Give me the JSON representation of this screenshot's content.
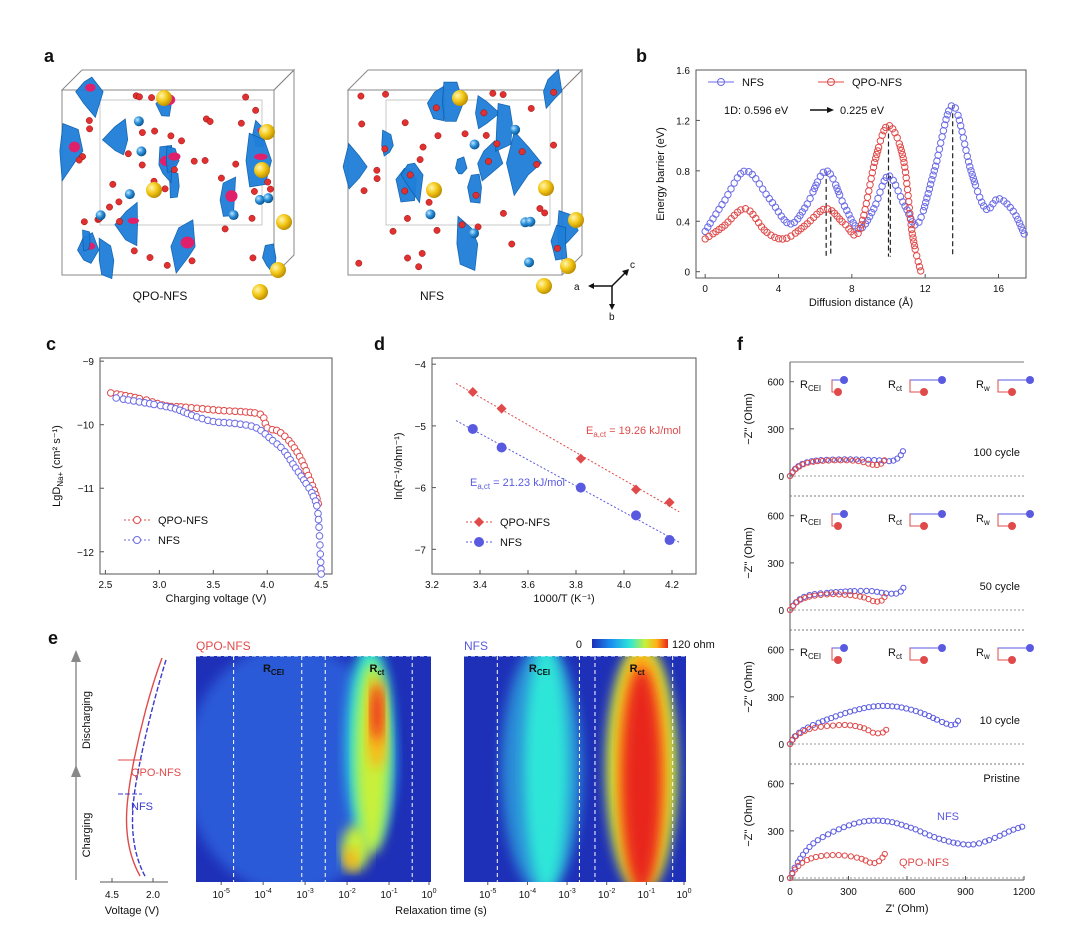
{
  "panel_labels": [
    "a",
    "b",
    "c",
    "d",
    "e",
    "f"
  ],
  "panel_a": {
    "structures": [
      {
        "label": "QPO-NFS",
        "highlight": "#e0206a"
      },
      {
        "label": "NFS",
        "highlight": ""
      }
    ],
    "axes": {
      "a": "a",
      "b": "b",
      "c": "c"
    },
    "colors": {
      "surface": "#1f7fd9",
      "oxygen": "#e03030",
      "sodium_yellow": "#f4c818",
      "sodium_blue": "#2a8fd8"
    }
  },
  "chart_data": [
    {
      "id": "b",
      "type": "line",
      "xlabel": "Diffusion distance (Å)",
      "ylabel": "Energy barrier (eV)",
      "xlim": [
        -0.5,
        17.5
      ],
      "ylim": [
        -0.05,
        1.6
      ],
      "xticks": [
        0,
        4,
        8,
        12,
        16
      ],
      "yticks": [
        0,
        0.4,
        0.8,
        1.2,
        1.6
      ],
      "annotation": {
        "prefix": "1D:",
        "from": "0.596 eV",
        "to": "0.225 eV"
      },
      "legend": "top",
      "series": [
        {
          "name": "NFS",
          "color": "#6b6be6",
          "points": [
            [
              0,
              0.32
            ],
            [
              1,
              0.55
            ],
            [
              2.2,
              0.8
            ],
            [
              3.5,
              0.58
            ],
            [
              4.6,
              0.38
            ],
            [
              5.5,
              0.52
            ],
            [
              6.6,
              0.8
            ],
            [
              7.6,
              0.52
            ],
            [
              8.4,
              0.34
            ],
            [
              9.2,
              0.5
            ],
            [
              10.0,
              0.76
            ],
            [
              10.9,
              0.52
            ],
            [
              11.6,
              0.38
            ],
            [
              12.5,
              0.8
            ],
            [
              13.5,
              1.32
            ],
            [
              14.5,
              0.8
            ],
            [
              15.3,
              0.5
            ],
            [
              16.0,
              0.58
            ],
            [
              16.8,
              0.48
            ],
            [
              17.4,
              0.3
            ]
          ]
        },
        {
          "name": "QPO-NFS",
          "color": "#e04a4a",
          "points": [
            [
              0,
              0.26
            ],
            [
              1,
              0.36
            ],
            [
              2.2,
              0.5
            ],
            [
              3.3,
              0.32
            ],
            [
              4.3,
              0.26
            ],
            [
              5.4,
              0.36
            ],
            [
              6.6,
              0.5
            ],
            [
              7.6,
              0.38
            ],
            [
              8.4,
              0.32
            ],
            [
              9.3,
              0.9
            ],
            [
              10.0,
              1.16
            ],
            [
              10.8,
              0.9
            ],
            [
              11.3,
              0.3
            ],
            [
              11.8,
              -0.02
            ]
          ]
        }
      ],
      "dashed_markers": [
        {
          "x": 6.6,
          "ytop": 0.8
        },
        {
          "x": 6.85,
          "ytop": 0.5
        },
        {
          "x": 10.0,
          "ytop": 1.16
        },
        {
          "x": 10.1,
          "ytop": 0.76
        },
        {
          "x": 13.5,
          "ytop": 1.32
        }
      ]
    },
    {
      "id": "c",
      "type": "line",
      "xlabel": "Charging voltage (V)",
      "ylabel": "LgD",
      "ylabel_sub": "Na+",
      "ylabel_unit": " (cm² s⁻¹)",
      "xlim": [
        2.45,
        4.6
      ],
      "ylim": [
        -12.35,
        -8.95
      ],
      "xticks": [
        2.5,
        3.0,
        3.5,
        4.0,
        4.5
      ],
      "yticks": [
        -9,
        -10,
        -11,
        -12
      ],
      "legend": "bottom-left",
      "series": [
        {
          "name": "QPO-NFS",
          "color": "#e04a4a",
          "points": [
            [
              2.55,
              -9.5
            ],
            [
              2.85,
              -9.6
            ],
            [
              3.05,
              -9.7
            ],
            [
              3.2,
              -9.72
            ],
            [
              3.4,
              -9.75
            ],
            [
              3.6,
              -9.78
            ],
            [
              3.8,
              -9.8
            ],
            [
              3.95,
              -9.85
            ],
            [
              4.0,
              -10.05
            ],
            [
              4.1,
              -10.1
            ],
            [
              4.2,
              -10.25
            ],
            [
              4.3,
              -10.5
            ],
            [
              4.38,
              -10.8
            ],
            [
              4.45,
              -11.1
            ],
            [
              4.48,
              -11.3
            ]
          ]
        },
        {
          "name": "NFS",
          "color": "#6b6be6",
          "points": [
            [
              2.6,
              -9.58
            ],
            [
              2.95,
              -9.68
            ],
            [
              3.15,
              -9.75
            ],
            [
              3.3,
              -9.85
            ],
            [
              3.5,
              -9.95
            ],
            [
              3.7,
              -9.98
            ],
            [
              3.9,
              -10.05
            ],
            [
              4.05,
              -10.25
            ],
            [
              4.15,
              -10.4
            ],
            [
              4.25,
              -10.65
            ],
            [
              4.35,
              -10.9
            ],
            [
              4.42,
              -11.1
            ],
            [
              4.47,
              -11.4
            ],
            [
              4.5,
              -12.35
            ]
          ]
        }
      ]
    },
    {
      "id": "d",
      "type": "scatter",
      "xlabel": "1000/T (K⁻¹)",
      "ylabel": "ln(R⁻¹/ohm⁻¹)",
      "xlim": [
        3.2,
        4.3
      ],
      "ylim": [
        -7.4,
        -3.9
      ],
      "xticks": [
        3.2,
        3.4,
        3.6,
        3.8,
        4.0,
        4.2
      ],
      "yticks": [
        -4,
        -5,
        -6,
        -7
      ],
      "legend": "bottom-left",
      "series": [
        {
          "name": "QPO-NFS",
          "color": "#e04a4a",
          "marker": "diamond",
          "x": [
            3.37,
            3.49,
            3.82,
            4.05,
            4.19
          ],
          "y": [
            -4.45,
            -4.72,
            -5.53,
            -6.03,
            -6.24
          ],
          "label": "E",
          "label_sub": "a,ct",
          "label_value": " = 19.26 kJ/mol"
        },
        {
          "name": "NFS",
          "color": "#5a5ae0",
          "marker": "circle",
          "x": [
            3.37,
            3.49,
            3.82,
            4.05,
            4.19
          ],
          "y": [
            -5.05,
            -5.35,
            -6.0,
            -6.45,
            -6.85
          ],
          "label": "E",
          "label_sub": "a,ct",
          "label_value": " = 21.23 kJ/mol"
        }
      ]
    },
    {
      "id": "f",
      "type": "scatter",
      "xlabel": "Z' (Ohm)",
      "ylabel": "−Z'' (Ohm)",
      "xlim": [
        0,
        1200
      ],
      "xticks": [
        0,
        300,
        600,
        900,
        1200
      ],
      "ylim": [
        0,
        700
      ],
      "yticks": [
        0,
        300,
        600
      ],
      "circuit_labels": [
        [
          "R",
          "CEI"
        ],
        [
          "R",
          "ct"
        ],
        [
          "R",
          "w"
        ]
      ],
      "subplots": [
        {
          "title": "100 cycle",
          "series": [
            {
              "name": "NFS",
              "color": "#5a5ae0",
              "x": [
                0,
                30,
                80,
                150,
                250,
                350,
                450,
                520,
                560,
                580
              ],
              "y": [
                0,
                50,
                85,
                100,
                105,
                105,
                100,
                95,
                120,
                160
              ]
            },
            {
              "name": "QPO-NFS",
              "color": "#e04a4a",
              "x": [
                0,
                30,
                80,
                150,
                250,
                350,
                430,
                470,
                490
              ],
              "y": [
                0,
                45,
                80,
                95,
                100,
                95,
                70,
                80,
                110
              ]
            }
          ]
        },
        {
          "title": "50 cycle",
          "series": [
            {
              "name": "NFS",
              "color": "#5a5ae0",
              "x": [
                0,
                40,
                100,
                200,
                320,
                420,
                500,
                560,
                590
              ],
              "y": [
                0,
                60,
                95,
                110,
                120,
                120,
                105,
                110,
                160
              ]
            },
            {
              "name": "QPO-NFS",
              "color": "#e04a4a",
              "x": [
                0,
                40,
                100,
                200,
                300,
                380,
                430,
                470,
                490
              ],
              "y": [
                0,
                55,
                85,
                100,
                95,
                80,
                55,
                60,
                95
              ]
            }
          ]
        },
        {
          "title": "10 cycle",
          "series": [
            {
              "name": "NFS",
              "color": "#5a5ae0",
              "x": [
                0,
                30,
                100,
                200,
                320,
                440,
                560,
                680,
                780,
                840,
                870
              ],
              "y": [
                0,
                55,
                110,
                160,
                210,
                240,
                235,
                195,
                140,
                120,
                165
              ]
            },
            {
              "name": "QPO-NFS",
              "color": "#e04a4a",
              "x": [
                0,
                30,
                100,
                200,
                300,
                380,
                430,
                480,
                500
              ],
              "y": [
                0,
                50,
                95,
                115,
                120,
                100,
                70,
                75,
                105
              ]
            }
          ]
        },
        {
          "title": "Pristine",
          "series": [
            {
              "name": "NFS",
              "color": "#5a5ae0",
              "x": [
                0,
                40,
                120,
                250,
                380,
                500,
                620,
                740,
                860,
                950,
                1050,
                1130,
                1200
              ],
              "y": [
                0,
                100,
                220,
                310,
                360,
                360,
                320,
                260,
                220,
                215,
                255,
                300,
                330
              ]
            },
            {
              "name": "QPO-NFS",
              "color": "#e04a4a",
              "x": [
                0,
                30,
                80,
                160,
                260,
                360,
                420,
                460,
                490
              ],
              "y": [
                0,
                60,
                110,
                140,
                145,
                125,
                95,
                110,
                160
              ]
            }
          ],
          "labels": [
            {
              "text": "NFS",
              "color": "#5a5ae0"
            },
            {
              "text": "QPO-NFS",
              "color": "#e04a4a"
            }
          ]
        }
      ]
    },
    {
      "id": "e",
      "type": "heatmap",
      "xlabel": "Relaxation time (s)",
      "x_ticks": [
        "10",
        "10",
        "10",
        "10",
        "10",
        "10"
      ],
      "x_tick_exp": [
        "-5",
        "-4",
        "-3",
        "-2",
        "-1",
        "0"
      ],
      "colorbar": {
        "min": "0",
        "max": "120 ohm"
      },
      "maps": [
        {
          "title": "QPO-NFS",
          "title_color": "#e04a4a",
          "labels": [
            [
              "R",
              "CEI"
            ],
            [
              "R",
              "ct"
            ]
          ]
        },
        {
          "title": "NFS",
          "title_color": "#5a5ae0",
          "labels": [
            [
              "R",
              "CEI"
            ],
            [
              "R",
              "ct"
            ]
          ]
        }
      ],
      "voltage_profile": {
        "xlabel": "Voltage (V)",
        "xticks": [
          "4.5",
          "2.0"
        ],
        "regions": [
          "Discharging",
          "Charging"
        ],
        "legend": [
          {
            "name": "QPO-NFS",
            "color": "#e04a4a"
          },
          {
            "name": "NFS",
            "color": "#3a3ad0"
          }
        ]
      }
    }
  ]
}
